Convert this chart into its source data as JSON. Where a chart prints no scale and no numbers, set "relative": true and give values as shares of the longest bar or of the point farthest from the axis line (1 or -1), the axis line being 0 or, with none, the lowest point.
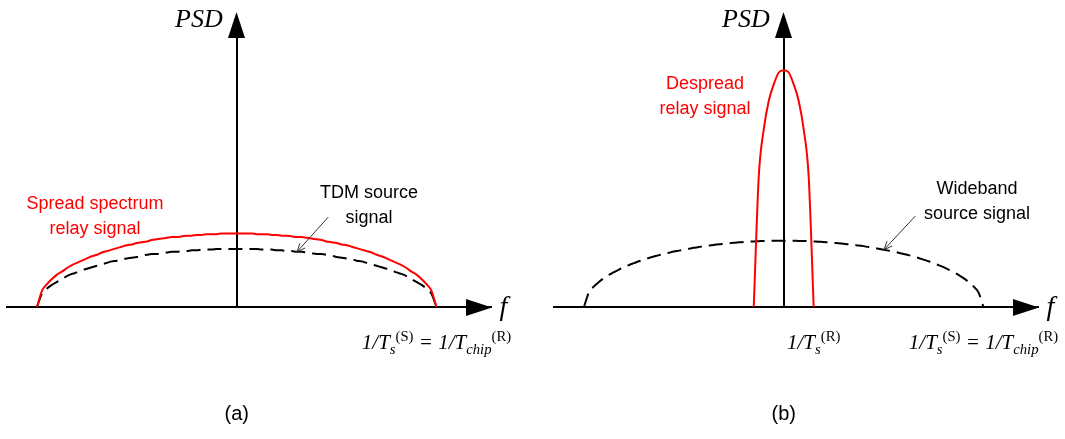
{
  "chart_data": [
    {
      "type": "line",
      "title": "(a)",
      "xlabel": "f",
      "ylabel": "PSD",
      "relative": true,
      "grid": false,
      "legend": false,
      "marker": "none",
      "line_style": "solid",
      "annotations": [
        "1/T$_{s}$$^{(S)}$ = 1/T$_{chip}$$^{(R)}$"
      ],
      "categories": [
        null,
        null,
        null,
        null,
        null,
        null,
        null,
        null,
        null,
        null,
        null,
        null,
        null,
        null,
        null,
        null,
        null,
        null,
        null,
        null,
        null,
        null,
        null,
        null,
        null,
        null,
        null,
        null,
        null,
        null,
        null,
        null,
        null,
        null,
        null,
        null,
        null,
        null,
        null,
        null,
        null,
        null,
        null,
        null,
        null,
        null,
        null,
        null,
        null,
        null,
        null,
        null,
        null,
        null,
        null,
        null,
        null,
        null,
        null,
        null,
        null,
        null,
        null,
        null,
        null,
        null,
        null,
        null,
        null,
        null,
        null,
        null,
        null,
        null,
        null,
        null,
        null,
        null,
        null,
        null,
        null,
        null,
        null,
        null,
        null,
        null,
        null,
        null,
        null,
        null,
        null,
        null,
        null,
        null,
        null,
        null,
        null,
        null
      ],
      "series": [
        {
          "name": "Spread spectrum relay signal",
          "color": "#ff0000",
          "values": [
            null,
            null,
            null,
            null,
            null,
            null,
            0,
            0.22,
            0.31,
            0.38,
            0.44,
            0.48,
            0.53,
            0.57,
            0.6,
            0.63,
            0.66,
            0.69,
            0.71,
            0.74,
            0.76,
            0.78,
            0.8,
            0.82,
            0.84,
            0.85,
            0.87,
            0.88,
            0.89,
            0.91,
            0.92,
            0.93,
            0.94,
            0.95,
            0.95,
            0.96,
            0.97,
            0.97,
            0.98,
            0.98,
            0.99,
            0.99,
            0.99,
            1,
            1,
            1,
            1,
            1,
            1,
            1,
            0.99,
            0.99,
            0.99,
            0.98,
            0.98,
            0.97,
            0.97,
            0.96,
            0.95,
            0.95,
            0.94,
            0.93,
            0.92,
            0.91,
            0.89,
            0.88,
            0.87,
            0.85,
            0.84,
            0.82,
            0.8,
            0.78,
            0.76,
            0.74,
            0.71,
            0.69,
            0.66,
            0.63,
            0.6,
            0.57,
            0.53,
            0.48,
            0.44,
            0.38,
            0.31,
            0.22,
            0,
            null,
            null,
            null,
            null,
            null,
            null,
            null,
            null,
            null,
            null,
            null
          ]
        },
        {
          "name": "TDM source signal",
          "color": "#000000",
          "line_style": "dashed",
          "values": [
            null,
            null,
            null,
            null,
            null,
            null,
            0,
            0.18,
            0.25,
            0.3,
            0.34,
            0.38,
            0.42,
            0.45,
            0.47,
            0.5,
            0.52,
            0.54,
            0.56,
            0.58,
            0.6,
            0.62,
            0.63,
            0.65,
            0.66,
            0.67,
            0.68,
            0.7,
            0.71,
            0.72,
            0.72,
            0.73,
            0.74,
            0.75,
            0.75,
            0.76,
            0.76,
            0.77,
            0.77,
            0.78,
            0.78,
            0.78,
            0.79,
            0.79,
            0.79,
            0.79,
            0.79,
            0.79,
            0.79,
            0.79,
            0.79,
            0.78,
            0.78,
            0.78,
            0.77,
            0.77,
            0.76,
            0.76,
            0.75,
            0.75,
            0.74,
            0.73,
            0.72,
            0.72,
            0.71,
            0.7,
            0.68,
            0.67,
            0.66,
            0.65,
            0.63,
            0.62,
            0.6,
            0.58,
            0.56,
            0.54,
            0.52,
            0.5,
            0.47,
            0.45,
            0.42,
            0.38,
            0.34,
            0.3,
            0.25,
            0.18,
            0,
            null,
            null,
            null,
            null,
            null,
            null,
            null,
            null,
            null,
            null,
            null
          ]
        }
      ]
    },
    {
      "type": "line",
      "title": "(b)",
      "xlabel": "f",
      "ylabel": "PSD",
      "relative": true,
      "grid": false,
      "legend": false,
      "marker": "none",
      "line_style": "solid",
      "tick_labels": "x",
      "categories": [
        null,
        null,
        null,
        null,
        null,
        null,
        null,
        null,
        null,
        null,
        null,
        null,
        null,
        null,
        null,
        null,
        null,
        null,
        null,
        null,
        null,
        null,
        null,
        null,
        null,
        null,
        null,
        null,
        null,
        null,
        null,
        null,
        null,
        null,
        null,
        null,
        null,
        null,
        null,
        null,
        null,
        null,
        null,
        null,
        null,
        null,
        null,
        null,
        null,
        null,
        null,
        null,
        "1/T$_{s}$$^{(R)}$",
        null,
        null,
        null,
        null,
        null,
        null,
        null,
        null,
        null,
        null,
        null,
        null,
        null,
        null,
        null,
        null,
        null,
        null,
        null,
        null,
        null,
        null,
        null,
        null,
        null,
        null,
        null,
        null,
        null,
        null,
        null,
        null,
        null,
        "1/T$_{s}$$^{(S)}$ = 1/T$_{chip}$$^{(R)}$",
        null,
        null,
        null,
        null,
        null,
        null,
        null,
        null,
        null,
        null,
        null
      ],
      "series": [
        {
          "name": "Despread relay signal",
          "color": "#ff0000",
          "values": [
            null,
            null,
            null,
            null,
            null,
            null,
            null,
            null,
            null,
            null,
            null,
            null,
            null,
            null,
            null,
            null,
            null,
            null,
            null,
            null,
            null,
            null,
            null,
            null,
            null,
            null,
            null,
            null,
            null,
            null,
            null,
            null,
            null,
            null,
            null,
            null,
            null,
            null,
            null,
            null,
            0,
            0.55,
            0.75,
            0.87,
            0.94,
            0.99,
            1,
            0.99,
            0.94,
            0.87,
            0.75,
            0.55,
            0,
            null,
            null,
            null,
            null,
            null,
            null,
            null,
            null,
            null,
            null,
            null,
            null,
            null,
            null,
            null,
            null,
            null,
            null,
            null,
            null,
            null,
            null,
            null,
            null,
            null,
            null,
            null,
            null,
            null,
            null,
            null,
            null,
            null,
            null,
            null,
            null,
            null,
            null,
            null,
            null,
            null,
            null,
            null,
            null,
            null
          ]
        },
        {
          "name": "Wideband source signal",
          "color": "#000000",
          "line_style": "dashed",
          "values": [
            null,
            null,
            null,
            null,
            null,
            null,
            0,
            0.062,
            0.087,
            0.106,
            0.122,
            0.136,
            0.147,
            0.158,
            0.168,
            0.177,
            0.185,
            0.193,
            0.2,
            0.207,
            0.213,
            0.219,
            0.224,
            0.229,
            0.234,
            0.238,
            0.242,
            0.246,
            0.25,
            0.253,
            0.257,
            0.26,
            0.262,
            0.265,
            0.267,
            0.269,
            0.271,
            0.273,
            0.274,
            0.276,
            0.277,
            0.278,
            0.279,
            0.279,
            0.28,
            0.28,
            0.28,
            0.28,
            0.28,
            0.279,
            0.279,
            0.278,
            0.277,
            0.276,
            0.274,
            0.273,
            0.271,
            0.269,
            0.267,
            0.265,
            0.262,
            0.26,
            0.257,
            0.253,
            0.25,
            0.246,
            0.242,
            0.238,
            0.234,
            0.229,
            0.224,
            0.219,
            0.213,
            0.207,
            0.2,
            0.193,
            0.185,
            0.177,
            0.168,
            0.158,
            0.147,
            0.136,
            0.122,
            0.106,
            0.087,
            0.062,
            0,
            null,
            null,
            null,
            null,
            null,
            null,
            null,
            null,
            null,
            null,
            null
          ]
        }
      ]
    }
  ]
}
